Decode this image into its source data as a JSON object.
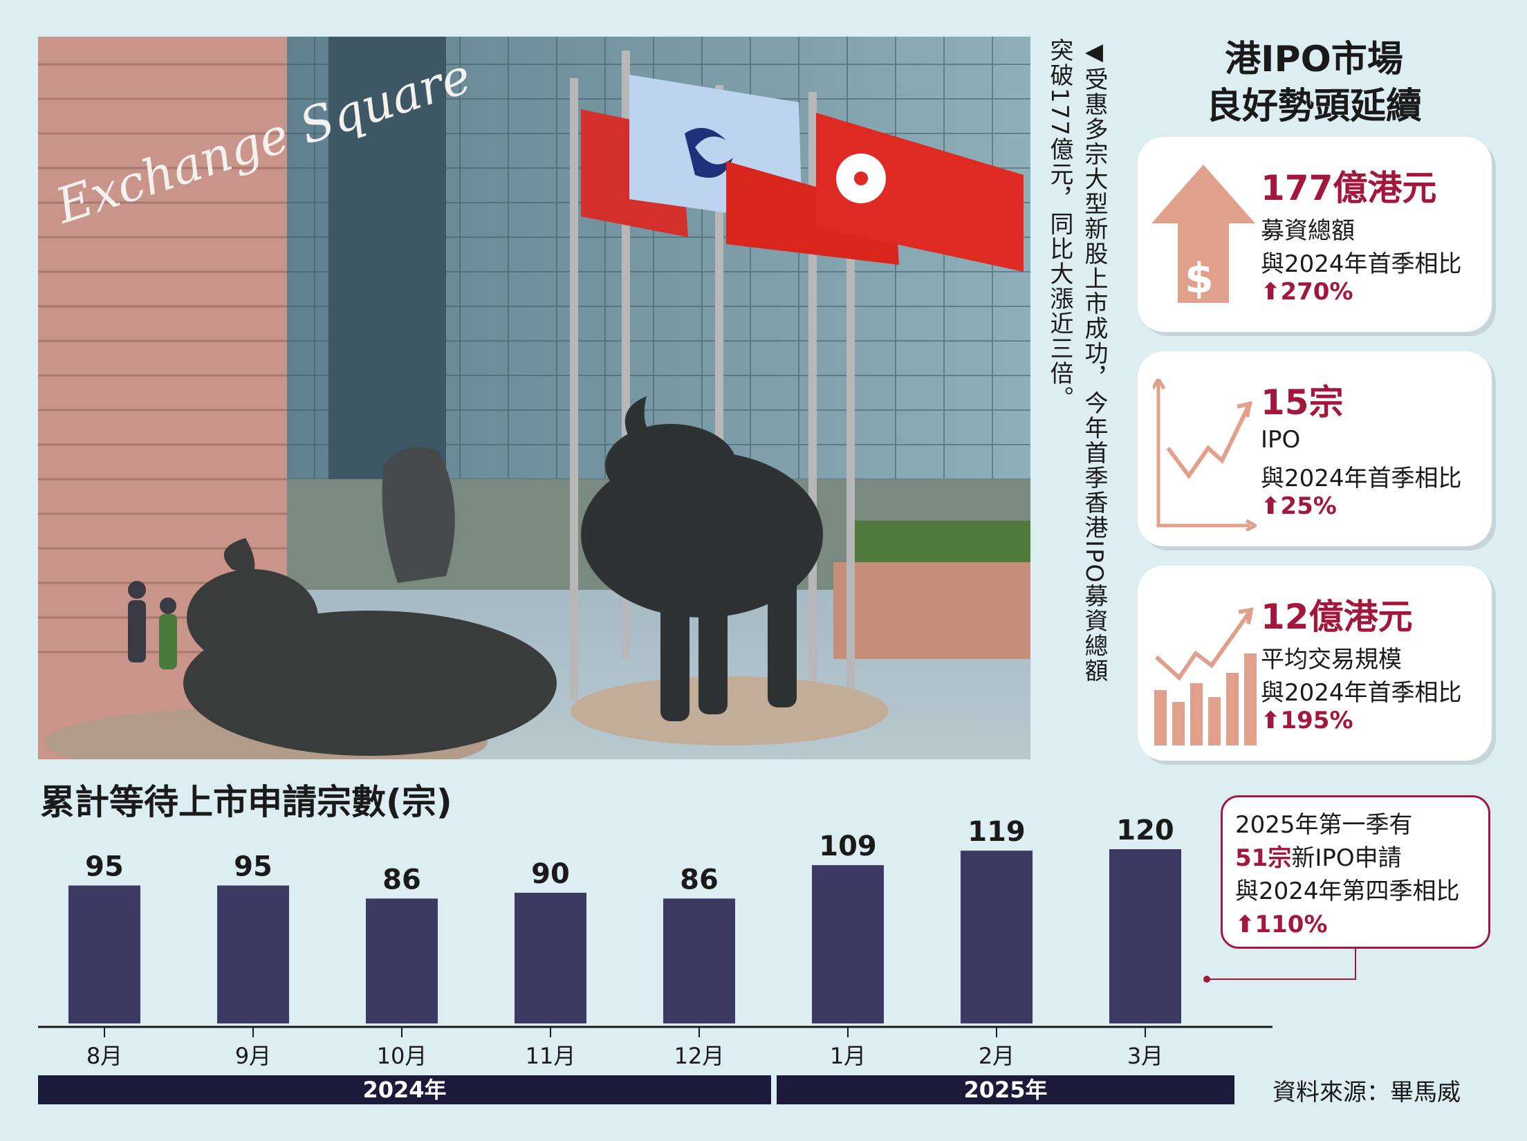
{
  "caption": {
    "col1": "◀受惠多宗大型新股上市成功，今年首季香港IPO募資總額",
    "col2": "突破177億元，同比大漲近三倍。"
  },
  "headline": {
    "line1": "港IPO市場",
    "line2": "良好勢頭延續"
  },
  "cards": [
    {
      "value": "177億港元",
      "label": "募資總額",
      "compare": "與2024年首季相比",
      "change": "⬆270%",
      "icon": "up-arrow-dollar-icon"
    },
    {
      "value": "15宗",
      "label": "IPO",
      "compare": "與2024年首季相比",
      "change": "⬆25%",
      "icon": "line-chart-icon"
    },
    {
      "value": "12億港元",
      "label": "平均交易規模",
      "compare": "與2024年首季相比",
      "change": "⬆195%",
      "icon": "bar-line-chart-icon"
    }
  ],
  "note": {
    "line1": "2025年第一季有",
    "highlight": "51宗",
    "line2_rest": "新IPO申請",
    "line3": "與2024年第四季相比",
    "change": "⬆110%"
  },
  "source": "資料來源：畢馬威",
  "colors": {
    "bar": "#3c3a62",
    "accent": "#a3173c",
    "icon": "#e0a08c",
    "yearbar": "#1c1a3a"
  },
  "chart_data": {
    "type": "bar",
    "title": "累計等待上市申請宗數(宗)",
    "categories": [
      "8月",
      "9月",
      "10月",
      "11月",
      "12月",
      "1月",
      "2月",
      "3月"
    ],
    "values": [
      95,
      95,
      86,
      90,
      86,
      109,
      119,
      120
    ],
    "groups": [
      {
        "label": "2024年",
        "categories": [
          "8月",
          "9月",
          "10月",
          "11月",
          "12月"
        ]
      },
      {
        "label": "2025年",
        "categories": [
          "1月",
          "2月",
          "3月"
        ]
      }
    ],
    "ylim": [
      0,
      140
    ],
    "grid": false,
    "data_labels": true
  }
}
